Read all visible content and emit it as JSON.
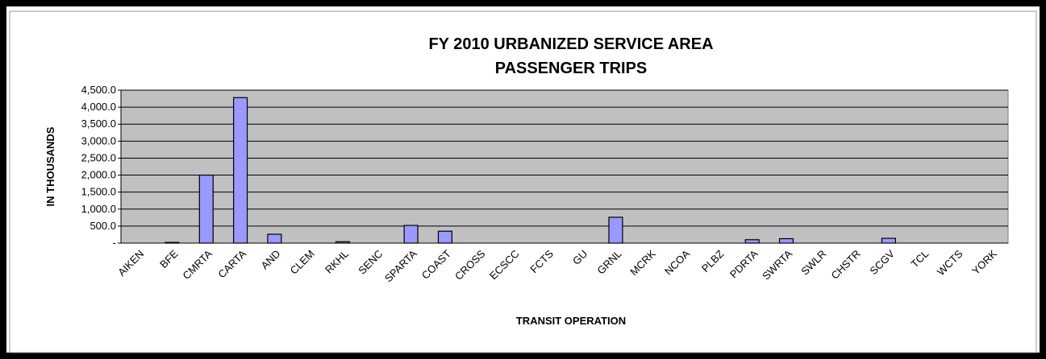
{
  "chart_data": {
    "type": "bar",
    "title": [
      "FY 2010 URBANIZED SERVICE AREA",
      "PASSENGER TRIPS"
    ],
    "x_label": "TRANSIT OPERATION",
    "y_label": "IN THOUSANDS",
    "categories": [
      "AIKEN",
      "BFE",
      "CMRTA",
      "CARTA",
      "AND",
      "CLEM",
      "RKHL",
      "SENC",
      "SPARTA",
      "COAST",
      "CROSS",
      "ECSCC",
      "FCTS",
      "GU",
      "GRNL",
      "MCRK",
      "NCOA",
      "PLBZ",
      "PDRTA",
      "SWRTA",
      "SWLR",
      "CHSTR",
      "SCGV",
      "TCL",
      "WCTS",
      "YORK"
    ],
    "values": [
      0,
      20,
      2000,
      4280,
      260,
      0,
      40,
      0,
      520,
      350,
      0,
      0,
      0,
      0,
      760,
      0,
      0,
      0,
      100,
      130,
      0,
      0,
      140,
      0,
      0,
      0
    ],
    "color": "#9999ff",
    "ylim": [
      0,
      4500
    ],
    "yticks": [
      {
        "value": 0,
        "label": "-"
      },
      {
        "value": 500,
        "label": "500.0"
      },
      {
        "value": 1000,
        "label": "1,000.0"
      },
      {
        "value": 1500,
        "label": "1,500.0"
      },
      {
        "value": 2000,
        "label": "2,000.0"
      },
      {
        "value": 2500,
        "label": "2,500.0"
      },
      {
        "value": 3000,
        "label": "3,000.0"
      },
      {
        "value": 3500,
        "label": "3,500.0"
      },
      {
        "value": 4000,
        "label": "4,000.0"
      },
      {
        "value": 4500,
        "label": "4,500.0"
      }
    ],
    "grid": true
  }
}
